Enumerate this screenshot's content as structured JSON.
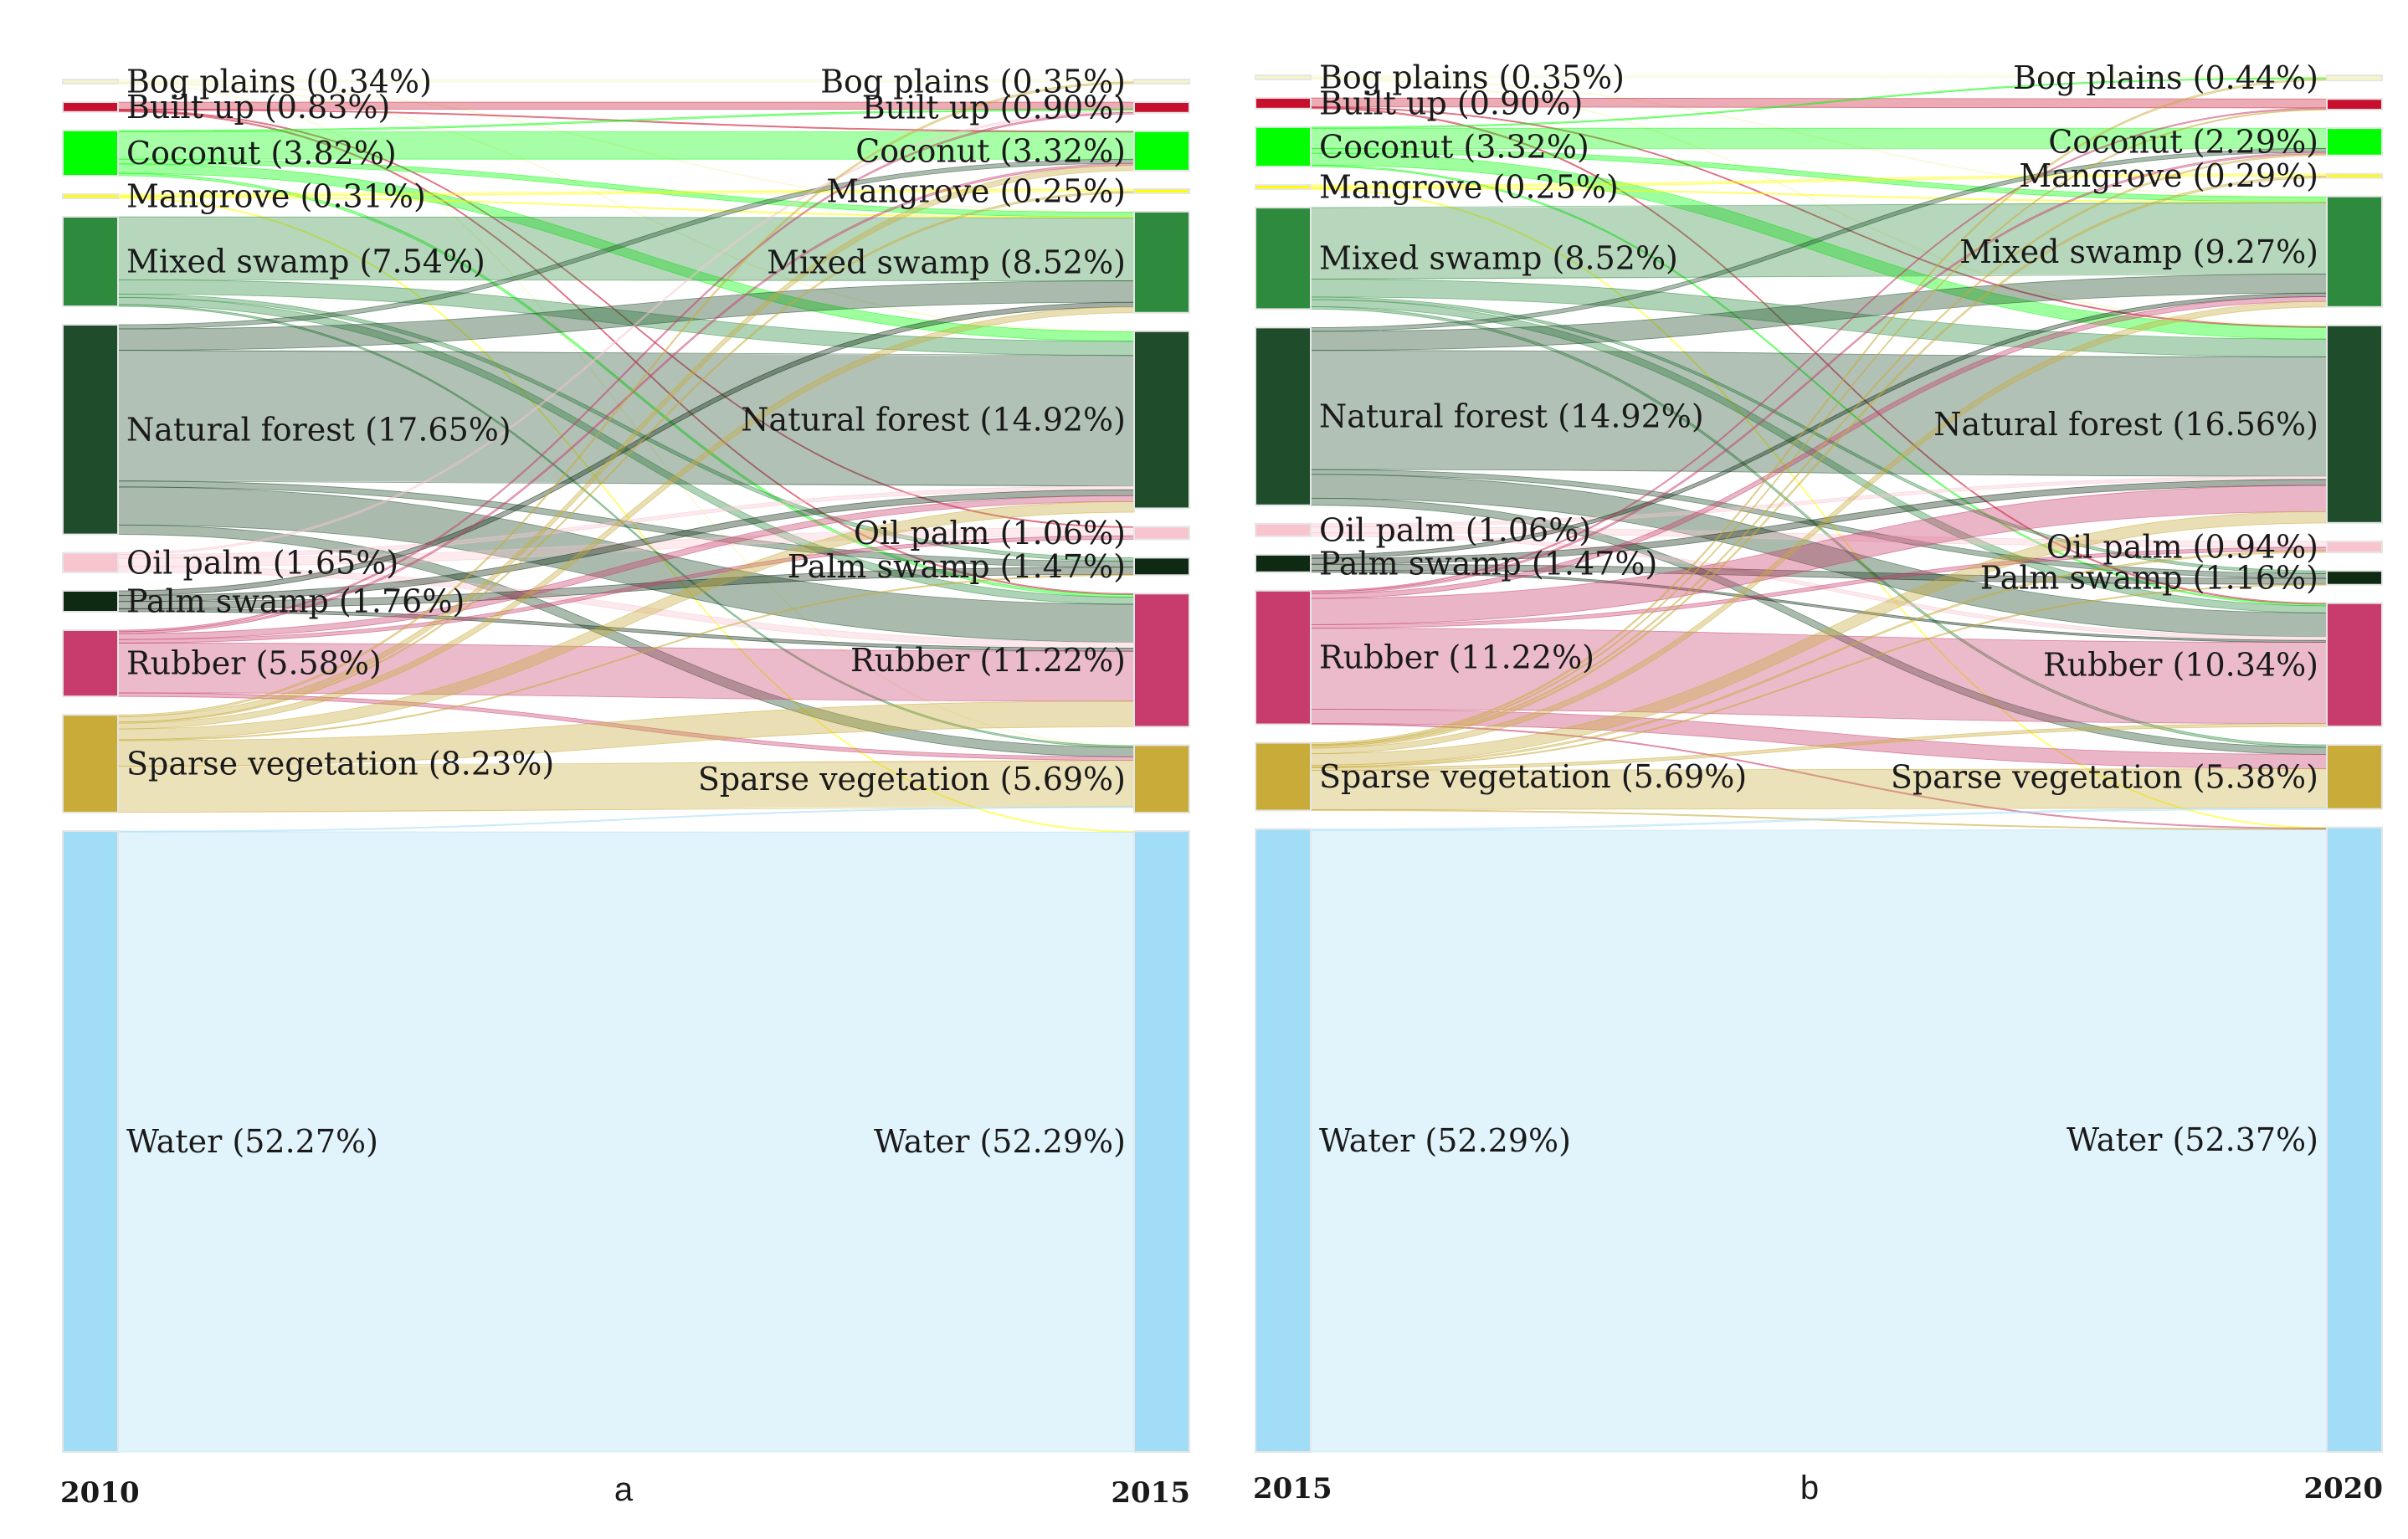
{
  "chart_data": [
    {
      "type": "sankey",
      "panel_label": "a",
      "from_year": "2010",
      "to_year": "2015",
      "categories": [
        "Bog plains",
        "Built up",
        "Coconut",
        "Mangrove",
        "Mixed swamp",
        "Natural forest",
        "Oil palm",
        "Palm swamp",
        "Rubber",
        "Sparse vegetation",
        "Water"
      ],
      "colors": {
        "Bog plains": "#f5f5c8",
        "Built up": "#c8102e",
        "Coconut": "#00ff00",
        "Mangrove": "#ffff00",
        "Mixed swamp": "#2e8b3e",
        "Natural forest": "#1f4d2b",
        "Oil palm": "#f8c5cf",
        "Palm swamp": "#0f2a12",
        "Rubber": "#c73c6c",
        "Sparse vegetation": "#c9ab3a",
        "Water": "#a2ddf7"
      },
      "left_nodes": [
        {
          "name": "Bog plains",
          "value": 0.34,
          "label": "Bog plains (0.34%)"
        },
        {
          "name": "Built up",
          "value": 0.83,
          "label": "Built up (0.83%)"
        },
        {
          "name": "Coconut",
          "value": 3.82,
          "label": "Coconut (3.82%)"
        },
        {
          "name": "Mangrove",
          "value": 0.31,
          "label": "Mangrove (0.31%)"
        },
        {
          "name": "Mixed swamp",
          "value": 7.54,
          "label": "Mixed swamp (7.54%)"
        },
        {
          "name": "Natural forest",
          "value": 17.65,
          "label": "Natural forest (17.65%)"
        },
        {
          "name": "Oil palm",
          "value": 1.65,
          "label": "Oil palm (1.65%)"
        },
        {
          "name": "Palm swamp",
          "value": 1.76,
          "label": "Palm swamp (1.76%)"
        },
        {
          "name": "Rubber",
          "value": 5.58,
          "label": "Rubber (5.58%)"
        },
        {
          "name": "Sparse vegetation",
          "value": 8.23,
          "label": "Sparse vegetation (8.23%)"
        },
        {
          "name": "Water",
          "value": 52.27,
          "label": "Water (52.27%)"
        }
      ],
      "right_nodes": [
        {
          "name": "Bog plains",
          "value": 0.35,
          "label": "Bog plains (0.35%)"
        },
        {
          "name": "Built up",
          "value": 0.9,
          "label": "Built up (0.90%)"
        },
        {
          "name": "Coconut",
          "value": 3.32,
          "label": "Coconut (3.32%)"
        },
        {
          "name": "Mangrove",
          "value": 0.25,
          "label": "Mangrove (0.25%)"
        },
        {
          "name": "Mixed swamp",
          "value": 8.52,
          "label": "Mixed swamp (8.52%)"
        },
        {
          "name": "Natural forest",
          "value": 14.92,
          "label": "Natural forest (14.92%)"
        },
        {
          "name": "Oil palm",
          "value": 1.06,
          "label": "Oil palm (1.06%)"
        },
        {
          "name": "Palm swamp",
          "value": 1.47,
          "label": "Palm swamp (1.47%)"
        },
        {
          "name": "Rubber",
          "value": 11.22,
          "label": "Rubber (11.22%)"
        },
        {
          "name": "Sparse vegetation",
          "value": 5.69,
          "label": "Sparse vegetation (5.69%)"
        },
        {
          "name": "Water",
          "value": 52.29,
          "label": "Water (52.29%)"
        }
      ],
      "flows": [
        {
          "from": "Bog plains",
          "to": "Bog plains",
          "value": 0.2
        },
        {
          "from": "Bog plains",
          "to": "Natural forest",
          "value": 0.05
        },
        {
          "from": "Bog plains",
          "to": "Mixed swamp",
          "value": 0.05
        },
        {
          "from": "Bog plains",
          "to": "Sparse vegetation",
          "value": 0.04
        },
        {
          "from": "Built up",
          "to": "Built up",
          "value": 0.6
        },
        {
          "from": "Built up",
          "to": "Rubber",
          "value": 0.1
        },
        {
          "from": "Built up",
          "to": "Coconut",
          "value": 0.06
        },
        {
          "from": "Built up",
          "to": "Oil palm",
          "value": 0.07
        },
        {
          "from": "Coconut",
          "to": "Coconut",
          "value": 2.3
        },
        {
          "from": "Coconut",
          "to": "Natural forest",
          "value": 0.8
        },
        {
          "from": "Coconut",
          "to": "Mixed swamp",
          "value": 0.4
        },
        {
          "from": "Coconut",
          "to": "Rubber",
          "value": 0.2
        },
        {
          "from": "Coconut",
          "to": "Built up",
          "value": 0.12
        },
        {
          "from": "Mangrove",
          "to": "Mangrove",
          "value": 0.15
        },
        {
          "from": "Mangrove",
          "to": "Mixed swamp",
          "value": 0.08
        },
        {
          "from": "Mangrove",
          "to": "Water",
          "value": 0.08
        },
        {
          "from": "Mixed swamp",
          "to": "Mixed swamp",
          "value": 5.3
        },
        {
          "from": "Mixed swamp",
          "to": "Natural forest",
          "value": 1.2
        },
        {
          "from": "Mixed swamp",
          "to": "Rubber",
          "value": 0.6
        },
        {
          "from": "Mixed swamp",
          "to": "Palm swamp",
          "value": 0.3
        },
        {
          "from": "Mixed swamp",
          "to": "Sparse vegetation",
          "value": 0.14
        },
        {
          "from": "Natural forest",
          "to": "Natural forest",
          "value": 11.0
        },
        {
          "from": "Natural forest",
          "to": "Mixed swamp",
          "value": 1.8
        },
        {
          "from": "Natural forest",
          "to": "Rubber",
          "value": 3.2
        },
        {
          "from": "Natural forest",
          "to": "Sparse vegetation",
          "value": 0.8
        },
        {
          "from": "Natural forest",
          "to": "Palm swamp",
          "value": 0.5
        },
        {
          "from": "Natural forest",
          "to": "Coconut",
          "value": 0.35
        },
        {
          "from": "Oil palm",
          "to": "Oil palm",
          "value": 0.7
        },
        {
          "from": "Oil palm",
          "to": "Rubber",
          "value": 0.5
        },
        {
          "from": "Oil palm",
          "to": "Natural forest",
          "value": 0.3
        },
        {
          "from": "Oil palm",
          "to": "Built up",
          "value": 0.15
        },
        {
          "from": "Palm swamp",
          "to": "Palm swamp",
          "value": 0.6
        },
        {
          "from": "Palm swamp",
          "to": "Natural forest",
          "value": 0.5
        },
        {
          "from": "Palm swamp",
          "to": "Mixed swamp",
          "value": 0.4
        },
        {
          "from": "Palm swamp",
          "to": "Rubber",
          "value": 0.26
        },
        {
          "from": "Rubber",
          "to": "Rubber",
          "value": 4.2
        },
        {
          "from": "Rubber",
          "to": "Natural forest",
          "value": 0.5
        },
        {
          "from": "Rubber",
          "to": "Oil palm",
          "value": 0.29
        },
        {
          "from": "Rubber",
          "to": "Sparse vegetation",
          "value": 0.3
        },
        {
          "from": "Rubber",
          "to": "Built up",
          "value": 0.13
        },
        {
          "from": "Rubber",
          "to": "Coconut",
          "value": 0.16
        },
        {
          "from": "Sparse vegetation",
          "to": "Sparse vegetation",
          "value": 3.9
        },
        {
          "from": "Sparse vegetation",
          "to": "Rubber",
          "value": 2.16
        },
        {
          "from": "Sparse vegetation",
          "to": "Natural forest",
          "value": 0.9
        },
        {
          "from": "Sparse vegetation",
          "to": "Mixed swamp",
          "value": 0.49
        },
        {
          "from": "Sparse vegetation",
          "to": "Coconut",
          "value": 0.45
        },
        {
          "from": "Sparse vegetation",
          "to": "Bog plains",
          "value": 0.15
        },
        {
          "from": "Sparse vegetation",
          "to": "Palm swamp",
          "value": 0.07
        },
        {
          "from": "Sparse vegetation",
          "to": "Mangrove",
          "value": 0.1
        },
        {
          "from": "Water",
          "to": "Water",
          "value": 52.21
        },
        {
          "from": "Water",
          "to": "Sparse vegetation",
          "value": 0.06
        }
      ]
    },
    {
      "type": "sankey",
      "panel_label": "b",
      "from_year": "2015",
      "to_year": "2020",
      "categories": [
        "Bog plains",
        "Built up",
        "Coconut",
        "Mangrove",
        "Mixed swamp",
        "Natural forest",
        "Oil palm",
        "Palm swamp",
        "Rubber",
        "Sparse vegetation",
        "Water"
      ],
      "colors": {
        "Bog plains": "#f5f5c8",
        "Built up": "#c8102e",
        "Coconut": "#00ff00",
        "Mangrove": "#ffff00",
        "Mixed swamp": "#2e8b3e",
        "Natural forest": "#1f4d2b",
        "Oil palm": "#f8c5cf",
        "Palm swamp": "#0f2a12",
        "Rubber": "#c73c6c",
        "Sparse vegetation": "#c9ab3a",
        "Water": "#a2ddf7"
      },
      "left_nodes": [
        {
          "name": "Bog plains",
          "value": 0.35,
          "label": "Bog plains (0.35%)"
        },
        {
          "name": "Built up",
          "value": 0.9,
          "label": "Built up (0.90%)"
        },
        {
          "name": "Coconut",
          "value": 3.32,
          "label": "Coconut (3.32%)"
        },
        {
          "name": "Mangrove",
          "value": 0.25,
          "label": "Mangrove (0.25%)"
        },
        {
          "name": "Mixed swamp",
          "value": 8.52,
          "label": "Mixed swamp (8.52%)"
        },
        {
          "name": "Natural forest",
          "value": 14.92,
          "label": "Natural forest (14.92%)"
        },
        {
          "name": "Oil palm",
          "value": 1.06,
          "label": "Oil palm (1.06%)"
        },
        {
          "name": "Palm swamp",
          "value": 1.47,
          "label": "Palm swamp (1.47%)"
        },
        {
          "name": "Rubber",
          "value": 11.22,
          "label": "Rubber (11.22%)"
        },
        {
          "name": "Sparse vegetation",
          "value": 5.69,
          "label": "Sparse vegetation (5.69%)"
        },
        {
          "name": "Water",
          "value": 52.29,
          "label": "Water (52.29%)"
        }
      ],
      "right_nodes": [
        {
          "name": "Bog plains",
          "value": 0.44,
          "label": "Bog plains (0.44%)"
        },
        {
          "name": "Built up",
          "value": 0.9,
          "label": ""
        },
        {
          "name": "Coconut",
          "value": 2.29,
          "label": "Coconut (2.29%)"
        },
        {
          "name": "Mangrove",
          "value": 0.29,
          "label": "Mangrove (0.29%)"
        },
        {
          "name": "Mixed swamp",
          "value": 9.27,
          "label": "Mixed swamp (9.27%)"
        },
        {
          "name": "Natural forest",
          "value": 16.56,
          "label": "Natural forest (16.56%)"
        },
        {
          "name": "Oil palm",
          "value": 0.94,
          "label": "Oil palm (0.94%)"
        },
        {
          "name": "Palm swamp",
          "value": 1.16,
          "label": "Palm swamp (1.16%)"
        },
        {
          "name": "Rubber",
          "value": 10.34,
          "label": "Rubber (10.34%)"
        },
        {
          "name": "Sparse vegetation",
          "value": 5.38,
          "label": "Sparse vegetation (5.38%)"
        },
        {
          "name": "Water",
          "value": 52.37,
          "label": "Water (52.37%)"
        }
      ],
      "flows": [
        {
          "from": "Bog plains",
          "to": "Bog plains",
          "value": 0.2
        },
        {
          "from": "Bog plains",
          "to": "Natural forest",
          "value": 0.1
        },
        {
          "from": "Bog plains",
          "to": "Mixed swamp",
          "value": 0.05
        },
        {
          "from": "Built up",
          "to": "Built up",
          "value": 0.75
        },
        {
          "from": "Built up",
          "to": "Rubber",
          "value": 0.1
        },
        {
          "from": "Built up",
          "to": "Natural forest",
          "value": 0.05
        },
        {
          "from": "Coconut",
          "to": "Coconut",
          "value": 1.7
        },
        {
          "from": "Coconut",
          "to": "Natural forest",
          "value": 1.0
        },
        {
          "from": "Coconut",
          "to": "Mixed swamp",
          "value": 0.4
        },
        {
          "from": "Coconut",
          "to": "Rubber",
          "value": 0.12
        },
        {
          "from": "Coconut",
          "to": "Bog plains",
          "value": 0.1
        },
        {
          "from": "Mangrove",
          "to": "Mangrove",
          "value": 0.15
        },
        {
          "from": "Mangrove",
          "to": "Mixed swamp",
          "value": 0.05
        },
        {
          "from": "Mangrove",
          "to": "Water",
          "value": 0.05
        },
        {
          "from": "Mixed swamp",
          "to": "Mixed swamp",
          "value": 6.0
        },
        {
          "from": "Mixed swamp",
          "to": "Natural forest",
          "value": 1.5
        },
        {
          "from": "Mixed swamp",
          "to": "Rubber",
          "value": 0.6
        },
        {
          "from": "Mixed swamp",
          "to": "Palm swamp",
          "value": 0.22
        },
        {
          "from": "Mixed swamp",
          "to": "Sparse vegetation",
          "value": 0.2
        },
        {
          "from": "Natural forest",
          "to": "Natural forest",
          "value": 10.0
        },
        {
          "from": "Natural forest",
          "to": "Mixed swamp",
          "value": 1.6
        },
        {
          "from": "Natural forest",
          "to": "Rubber",
          "value": 2.0
        },
        {
          "from": "Natural forest",
          "to": "Sparse vegetation",
          "value": 0.6
        },
        {
          "from": "Natural forest",
          "to": "Palm swamp",
          "value": 0.4
        },
        {
          "from": "Natural forest",
          "to": "Coconut",
          "value": 0.32
        },
        {
          "from": "Oil palm",
          "to": "Oil palm",
          "value": 0.5
        },
        {
          "from": "Oil palm",
          "to": "Rubber",
          "value": 0.3
        },
        {
          "from": "Oil palm",
          "to": "Natural forest",
          "value": 0.26
        },
        {
          "from": "Palm swamp",
          "to": "Palm swamp",
          "value": 0.5
        },
        {
          "from": "Palm swamp",
          "to": "Natural forest",
          "value": 0.5
        },
        {
          "from": "Palm swamp",
          "to": "Mixed swamp",
          "value": 0.3
        },
        {
          "from": "Palm swamp",
          "to": "Rubber",
          "value": 0.17
        },
        {
          "from": "Rubber",
          "to": "Rubber",
          "value": 6.8
        },
        {
          "from": "Rubber",
          "to": "Natural forest",
          "value": 2.2
        },
        {
          "from": "Rubber",
          "to": "Sparse vegetation",
          "value": 1.2
        },
        {
          "from": "Rubber",
          "to": "Oil palm",
          "value": 0.3
        },
        {
          "from": "Rubber",
          "to": "Coconut",
          "value": 0.15
        },
        {
          "from": "Rubber",
          "to": "Built up",
          "value": 0.1
        },
        {
          "from": "Rubber",
          "to": "Mixed swamp",
          "value": 0.4
        },
        {
          "from": "Rubber",
          "to": "Water",
          "value": 0.07
        },
        {
          "from": "Sparse vegetation",
          "to": "Sparse vegetation",
          "value": 3.3
        },
        {
          "from": "Sparse vegetation",
          "to": "Natural forest",
          "value": 0.96
        },
        {
          "from": "Sparse vegetation",
          "to": "Mixed swamp",
          "value": 0.47
        },
        {
          "from": "Sparse vegetation",
          "to": "Rubber",
          "value": 0.25
        },
        {
          "from": "Sparse vegetation",
          "to": "Oil palm",
          "value": 0.14
        },
        {
          "from": "Sparse vegetation",
          "to": "Bog plains",
          "value": 0.14
        },
        {
          "from": "Sparse vegetation",
          "to": "Coconut",
          "value": 0.12
        },
        {
          "from": "Sparse vegetation",
          "to": "Mangrove",
          "value": 0.14
        },
        {
          "from": "Sparse vegetation",
          "to": "Palm swamp",
          "value": 0.04
        },
        {
          "from": "Sparse vegetation",
          "to": "Built up",
          "value": 0.05
        },
        {
          "from": "Sparse vegetation",
          "to": "Water",
          "value": 0.08
        },
        {
          "from": "Water",
          "to": "Water",
          "value": 52.17
        },
        {
          "from": "Water",
          "to": "Sparse vegetation",
          "value": 0.12
        }
      ]
    }
  ]
}
